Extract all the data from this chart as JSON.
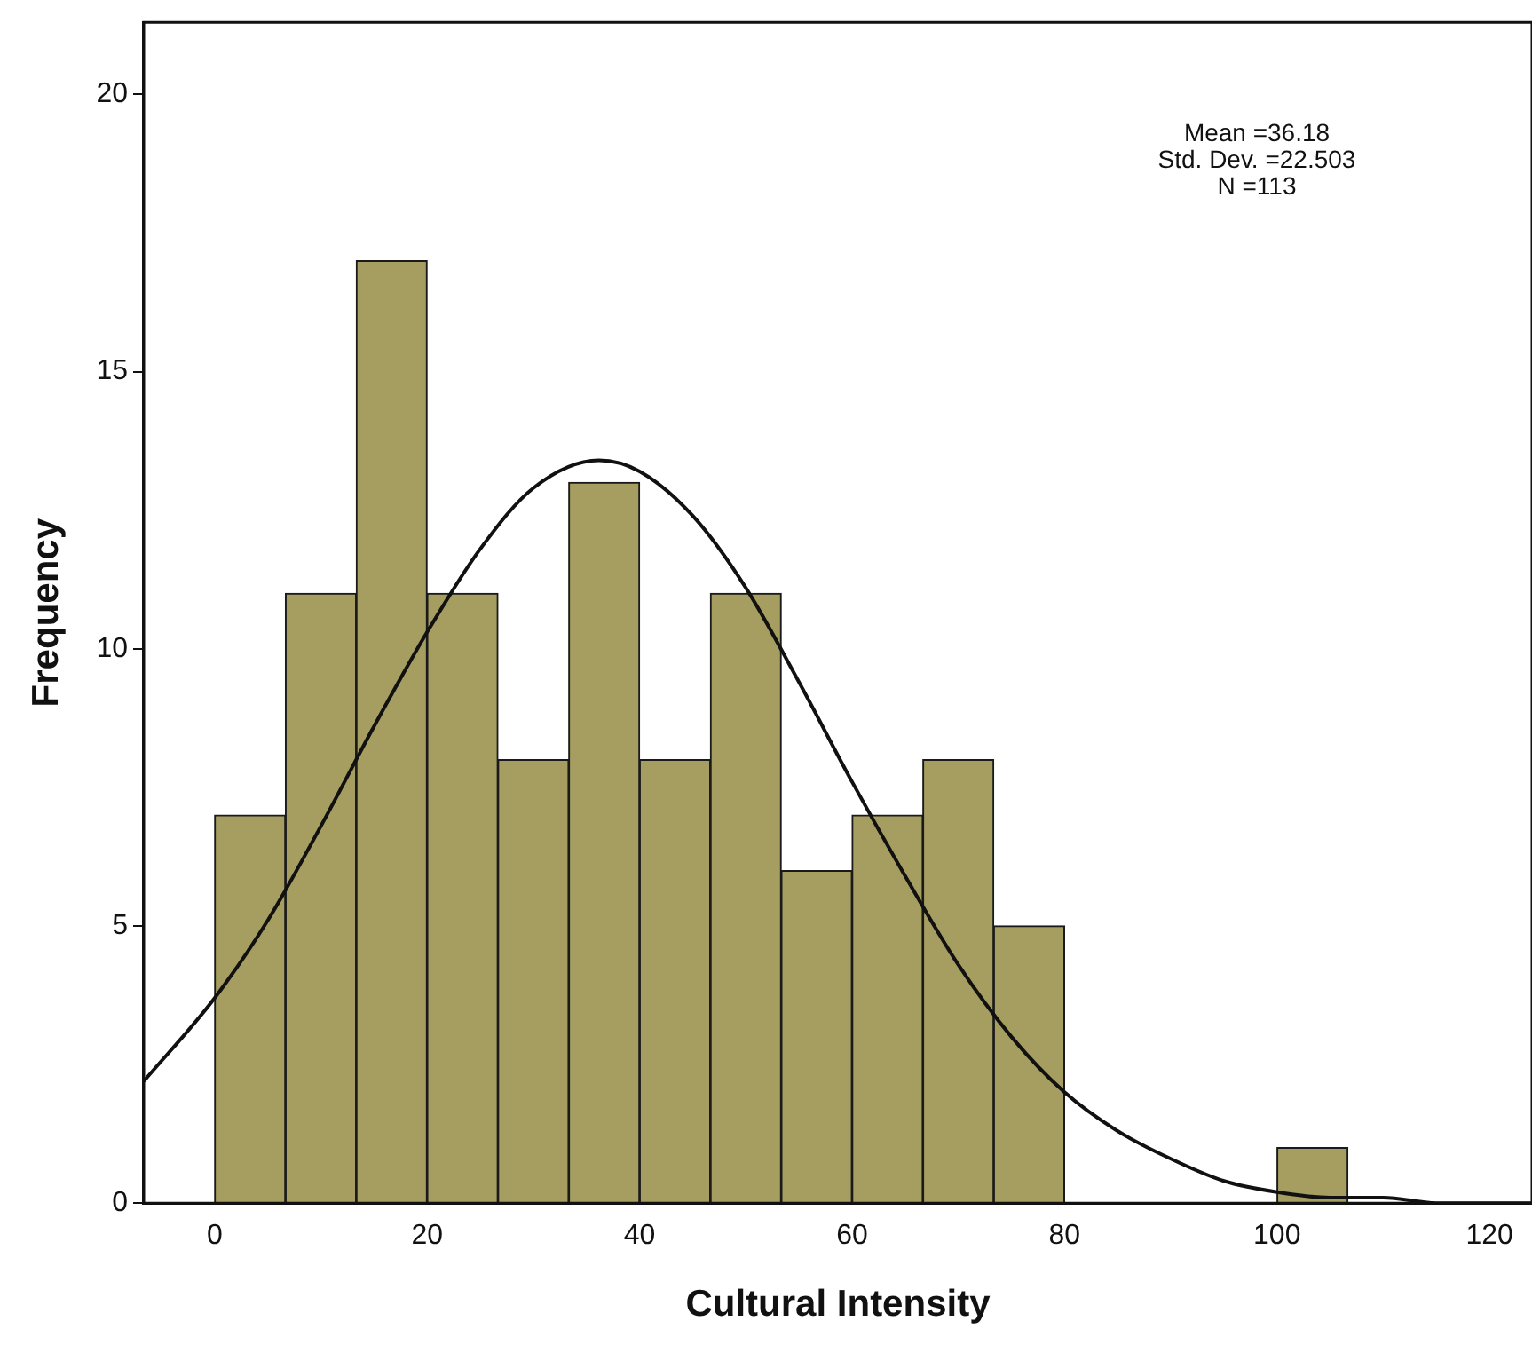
{
  "chart_data": {
    "type": "histogram",
    "xlabel": "Cultural Intensity",
    "ylabel": "Frequency",
    "bins": [
      0,
      6.667,
      13.333,
      20,
      26.667,
      33.333,
      40,
      46.667,
      53.333,
      60,
      66.667,
      73.333,
      80,
      86.667,
      93.333,
      100,
      106.667
    ],
    "values": [
      7,
      11,
      17,
      11,
      8,
      13,
      8,
      11,
      6,
      7,
      8,
      5,
      0,
      0,
      0,
      1
    ],
    "color": "#a59e60",
    "series": [
      {
        "type": "line",
        "color": "#111111",
        "x": [
          -6.667,
          0,
          5,
          10,
          15,
          20,
          25,
          30,
          36.18,
          40,
          45,
          50,
          55,
          60,
          65,
          70,
          75,
          80,
          85,
          90,
          95,
          100,
          105,
          110,
          115,
          120,
          124
        ],
        "values": [
          2.2,
          3.7,
          5.1,
          6.8,
          8.6,
          10.3,
          11.8,
          12.9,
          13.4,
          13.2,
          12.4,
          11.1,
          9.4,
          7.6,
          5.9,
          4.3,
          3,
          2,
          1.3,
          0.8,
          0.4,
          0.2,
          0.1,
          0.1,
          0,
          0,
          0
        ]
      }
    ],
    "xlim": [
      -6.667,
      124
    ],
    "xticks": [
      0,
      20,
      40,
      60,
      80,
      100,
      120
    ],
    "ylim": [
      0,
      21.3
    ],
    "yticks": [
      0,
      5,
      10,
      15,
      20
    ],
    "grid": false,
    "legend": false,
    "marker": "none",
    "annotations": [
      "Mean =36.18",
      "Std. Dev. =22.503",
      "N =113"
    ]
  }
}
